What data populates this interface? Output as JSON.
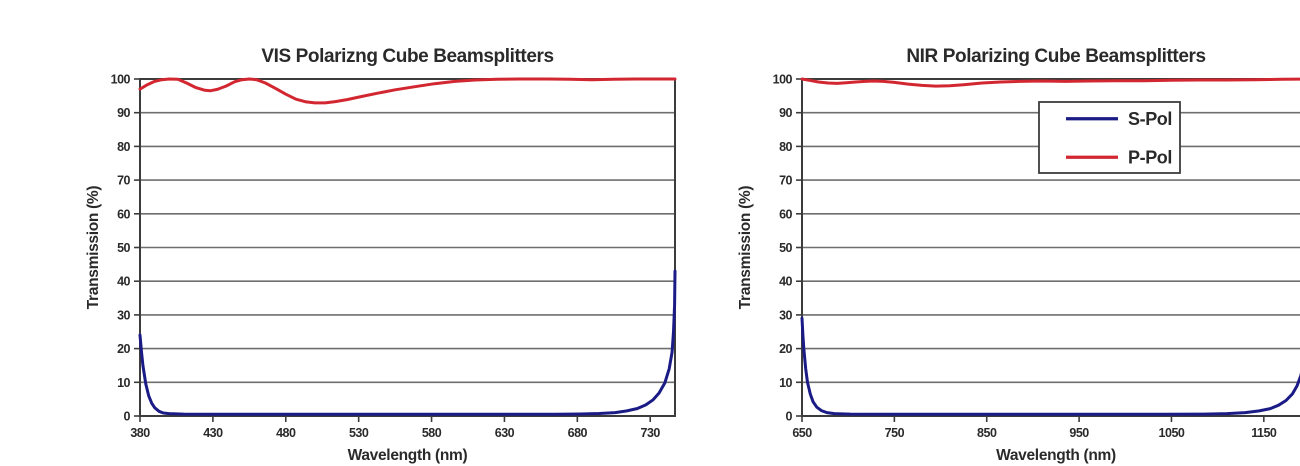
{
  "page": {
    "background": "#ffffff",
    "description": "Two side-by-side transmission spectra charts for polarizing cube beamsplitters"
  },
  "colors": {
    "s_pol": "#1b1b86",
    "p_pol": "#d22730",
    "gridline": "#6f6f6f",
    "plot_border": "#3c3c3c",
    "text": "#2a2a2a",
    "legend_bg": "#ffffff"
  },
  "chart_data": [
    {
      "id": "vis",
      "type": "line",
      "title": "VIS Polarizng Cube Beamsplitters",
      "xlabel": "Wavelength (nm)",
      "ylabel": "Transmission (%)",
      "xlim": [
        380,
        747
      ],
      "ylim": [
        0,
        100
      ],
      "xticks": [
        380,
        430,
        480,
        530,
        580,
        630,
        680,
        730
      ],
      "yticks": [
        0,
        10,
        20,
        30,
        40,
        50,
        60,
        70,
        80,
        90,
        100
      ],
      "grid": true,
      "legend": {
        "show": false
      },
      "series": [
        {
          "name": "S-Pol",
          "color": "#1b1b86",
          "points": [
            [
              380,
              24
            ],
            [
              381,
              19
            ],
            [
              382,
              15
            ],
            [
              384,
              9.5
            ],
            [
              386,
              6
            ],
            [
              388,
              3.8
            ],
            [
              390,
              2.5
            ],
            [
              393,
              1.4
            ],
            [
              396,
              0.9
            ],
            [
              400,
              0.7
            ],
            [
              410,
              0.55
            ],
            [
              430,
              0.5
            ],
            [
              520,
              0.5
            ],
            [
              620,
              0.5
            ],
            [
              665,
              0.5
            ],
            [
              682,
              0.6
            ],
            [
              695,
              0.75
            ],
            [
              706,
              1
            ],
            [
              714,
              1.5
            ],
            [
              721,
              2.2
            ],
            [
              727,
              3.3
            ],
            [
              732,
              4.8
            ],
            [
              736,
              6.8
            ],
            [
              740,
              9.8
            ],
            [
              743,
              14
            ],
            [
              745,
              19
            ],
            [
              746,
              25
            ],
            [
              746.7,
              33
            ],
            [
              747,
              43
            ]
          ]
        },
        {
          "name": "P-Pol",
          "color": "#d22730",
          "points": [
            [
              380,
              97
            ],
            [
              385,
              98.3
            ],
            [
              390,
              99.3
            ],
            [
              395,
              99.8
            ],
            [
              400,
              100
            ],
            [
              406,
              99.9
            ],
            [
              412,
              98.8
            ],
            [
              418,
              97.5
            ],
            [
              424,
              96.7
            ],
            [
              428,
              96.5
            ],
            [
              433,
              96.9
            ],
            [
              439,
              97.9
            ],
            [
              445,
              99.2
            ],
            [
              450,
              99.8
            ],
            [
              455,
              100
            ],
            [
              460,
              99.8
            ],
            [
              466,
              98.8
            ],
            [
              473,
              97.2
            ],
            [
              480,
              95.5
            ],
            [
              487,
              94
            ],
            [
              494,
              93.2
            ],
            [
              500,
              92.9
            ],
            [
              507,
              92.9
            ],
            [
              514,
              93.3
            ],
            [
              522,
              93.9
            ],
            [
              532,
              94.8
            ],
            [
              543,
              95.8
            ],
            [
              555,
              96.8
            ],
            [
              568,
              97.7
            ],
            [
              582,
              98.6
            ],
            [
              596,
              99.3
            ],
            [
              610,
              99.7
            ],
            [
              625,
              99.9
            ],
            [
              640,
              100
            ],
            [
              660,
              100
            ],
            [
              675,
              99.9
            ],
            [
              690,
              99.8
            ],
            [
              705,
              99.9
            ],
            [
              720,
              100
            ],
            [
              747,
              100
            ]
          ]
        }
      ]
    },
    {
      "id": "nir",
      "type": "line",
      "title": "NIR Polarizing Cube Beamsplitters",
      "xlabel": "Wavelength (nm)",
      "ylabel": "Transmission (%)",
      "xlim": [
        650,
        1200
      ],
      "ylim": [
        0,
        100
      ],
      "xticks": [
        650,
        750,
        850,
        950,
        1050,
        1150
      ],
      "yticks": [
        0,
        10,
        20,
        30,
        40,
        50,
        60,
        70,
        80,
        90,
        100
      ],
      "grid": true,
      "legend": {
        "show": true,
        "entries": [
          "S-Pol",
          "P-Pol"
        ],
        "position": "upper-center-right"
      },
      "series": [
        {
          "name": "S-Pol",
          "color": "#1b1b86",
          "points": [
            [
              650,
              29
            ],
            [
              651,
              24
            ],
            [
              652,
              20
            ],
            [
              654,
              14
            ],
            [
              656,
              10
            ],
            [
              659,
              6.5
            ],
            [
              662,
              4.2
            ],
            [
              666,
              2.6
            ],
            [
              671,
              1.6
            ],
            [
              677,
              1
            ],
            [
              685,
              0.7
            ],
            [
              702,
              0.55
            ],
            [
              760,
              0.5
            ],
            [
              900,
              0.5
            ],
            [
              1040,
              0.5
            ],
            [
              1085,
              0.55
            ],
            [
              1110,
              0.7
            ],
            [
              1130,
              1
            ],
            [
              1145,
              1.5
            ],
            [
              1157,
              2.2
            ],
            [
              1166,
              3.2
            ],
            [
              1174,
              4.6
            ],
            [
              1181,
              6.6
            ],
            [
              1186,
              9
            ],
            [
              1190,
              12
            ],
            [
              1194,
              16.5
            ],
            [
              1197,
              22
            ],
            [
              1199,
              27
            ],
            [
              1200,
              33
            ]
          ]
        },
        {
          "name": "P-Pol",
          "color": "#d22730",
          "points": [
            [
              650,
              100
            ],
            [
              658,
              99.6
            ],
            [
              668,
              99.1
            ],
            [
              678,
              98.8
            ],
            [
              688,
              98.7
            ],
            [
              698,
              98.9
            ],
            [
              708,
              99.1
            ],
            [
              718,
              99.3
            ],
            [
              728,
              99.4
            ],
            [
              738,
              99.3
            ],
            [
              750,
              99
            ],
            [
              765,
              98.5
            ],
            [
              780,
              98.1
            ],
            [
              795,
              97.9
            ],
            [
              810,
              98
            ],
            [
              825,
              98.3
            ],
            [
              845,
              98.8
            ],
            [
              865,
              99.1
            ],
            [
              885,
              99.3
            ],
            [
              910,
              99.4
            ],
            [
              935,
              99.3
            ],
            [
              960,
              99.4
            ],
            [
              990,
              99.5
            ],
            [
              1020,
              99.5
            ],
            [
              1050,
              99.6
            ],
            [
              1080,
              99.7
            ],
            [
              1110,
              99.7
            ],
            [
              1140,
              99.8
            ],
            [
              1170,
              99.9
            ],
            [
              1200,
              100
            ]
          ]
        }
      ]
    }
  ]
}
